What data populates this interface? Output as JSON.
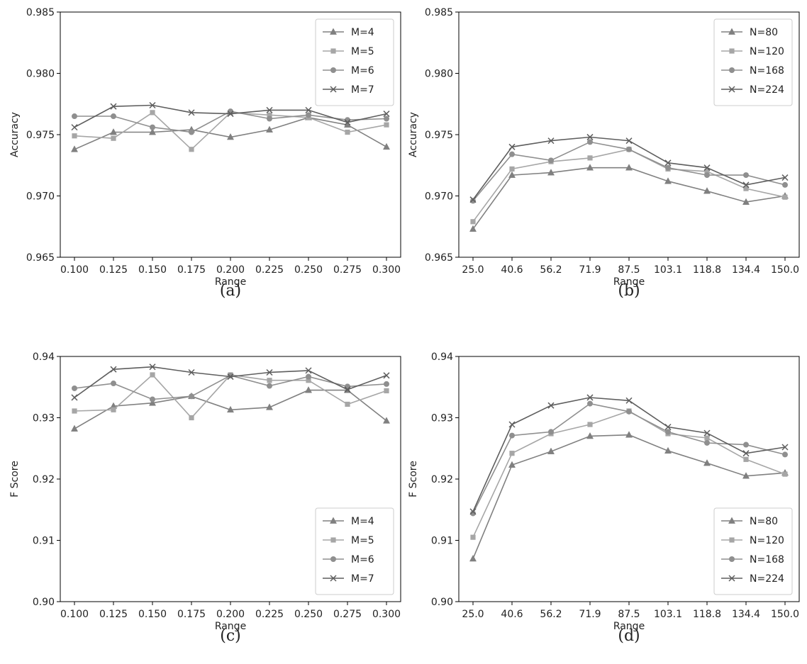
{
  "chart_data": [
    {
      "type": "line",
      "caption": "(a)",
      "xlabel": "Range",
      "ylabel": "Accuracy",
      "categories": [
        "0.100",
        "0.125",
        "0.150",
        "0.175",
        "0.200",
        "0.225",
        "0.250",
        "0.275",
        "0.300"
      ],
      "ylim": [
        0.965,
        0.985
      ],
      "yticks": [
        "0.965",
        "0.970",
        "0.975",
        "0.980",
        "0.985"
      ],
      "legend": "top-right",
      "series": [
        {
          "name": "M=4",
          "marker": "triangle",
          "color": "#808080",
          "values": [
            0.9738,
            0.9752,
            0.9752,
            0.9754,
            0.9748,
            0.9754,
            0.9764,
            0.9758,
            0.974
          ]
        },
        {
          "name": "M=5",
          "marker": "square",
          "color": "#a6a6a6",
          "values": [
            0.9749,
            0.9747,
            0.9768,
            0.9738,
            0.9768,
            0.9766,
            0.9764,
            0.9752,
            0.9758
          ]
        },
        {
          "name": "M=6",
          "marker": "circle",
          "color": "#8f8f8f",
          "values": [
            0.9765,
            0.9765,
            0.9756,
            0.9752,
            0.9769,
            0.9763,
            0.9766,
            0.9762,
            0.9763
          ]
        },
        {
          "name": "M=7",
          "marker": "x",
          "color": "#5e5e5e",
          "values": [
            0.9756,
            0.9773,
            0.9774,
            0.9768,
            0.9767,
            0.977,
            0.977,
            0.976,
            0.9767
          ]
        }
      ]
    },
    {
      "type": "line",
      "caption": "(b)",
      "xlabel": "Range",
      "ylabel": "Accuracy",
      "categories": [
        "25.0",
        "40.6",
        "56.2",
        "71.9",
        "87.5",
        "103.1",
        "118.8",
        "134.4",
        "150.0"
      ],
      "ylim": [
        0.965,
        0.985
      ],
      "yticks": [
        "0.965",
        "0.970",
        "0.975",
        "0.980",
        "0.985"
      ],
      "legend": "top-right",
      "series": [
        {
          "name": "N=80",
          "marker": "triangle",
          "color": "#808080",
          "values": [
            0.9673,
            0.9717,
            0.9719,
            0.9723,
            0.9723,
            0.9712,
            0.9704,
            0.9695,
            0.97
          ]
        },
        {
          "name": "N=120",
          "marker": "square",
          "color": "#a6a6a6",
          "values": [
            0.9679,
            0.9722,
            0.9728,
            0.9731,
            0.9738,
            0.9722,
            0.972,
            0.9706,
            0.9699
          ]
        },
        {
          "name": "N=168",
          "marker": "circle",
          "color": "#8f8f8f",
          "values": [
            0.9696,
            0.9734,
            0.9729,
            0.9744,
            0.9738,
            0.9723,
            0.9717,
            0.9717,
            0.9709
          ]
        },
        {
          "name": "N=224",
          "marker": "x",
          "color": "#5e5e5e",
          "values": [
            0.9697,
            0.974,
            0.9745,
            0.9748,
            0.9745,
            0.9727,
            0.9723,
            0.9709,
            0.9715
          ]
        }
      ]
    },
    {
      "type": "line",
      "caption": "(c)",
      "xlabel": "Range",
      "ylabel": "F Score",
      "categories": [
        "0.100",
        "0.125",
        "0.150",
        "0.175",
        "0.200",
        "0.225",
        "0.250",
        "0.275",
        "0.300"
      ],
      "ylim": [
        0.9,
        0.94
      ],
      "yticks": [
        "0.90",
        "0.91",
        "0.92",
        "0.93",
        "0.94"
      ],
      "legend": "bottom-right",
      "series": [
        {
          "name": "M=4",
          "marker": "triangle",
          "color": "#808080",
          "values": [
            0.9282,
            0.9319,
            0.9324,
            0.9335,
            0.9313,
            0.9317,
            0.9345,
            0.9345,
            0.9295
          ]
        },
        {
          "name": "M=5",
          "marker": "square",
          "color": "#a6a6a6",
          "values": [
            0.9311,
            0.9313,
            0.937,
            0.93,
            0.937,
            0.9361,
            0.9361,
            0.9322,
            0.9344
          ]
        },
        {
          "name": "M=6",
          "marker": "circle",
          "color": "#8f8f8f",
          "values": [
            0.9348,
            0.9356,
            0.933,
            0.9335,
            0.9369,
            0.9352,
            0.9367,
            0.9351,
            0.9355
          ]
        },
        {
          "name": "M=7",
          "marker": "x",
          "color": "#5e5e5e",
          "values": [
            0.9333,
            0.9379,
            0.9383,
            0.9374,
            0.9367,
            0.9374,
            0.9377,
            0.9346,
            0.9369
          ]
        }
      ]
    },
    {
      "type": "line",
      "caption": "(d)",
      "xlabel": "Range",
      "ylabel": "F Score",
      "categories": [
        "25.0",
        "40.6",
        "56.2",
        "71.9",
        "87.5",
        "103.1",
        "118.8",
        "134.4",
        "150.0"
      ],
      "ylim": [
        0.9,
        0.94
      ],
      "yticks": [
        "0.90",
        "0.91",
        "0.92",
        "0.93",
        "0.94"
      ],
      "legend": "bottom-right",
      "series": [
        {
          "name": "N=80",
          "marker": "triangle",
          "color": "#808080",
          "values": [
            0.907,
            0.9223,
            0.9245,
            0.927,
            0.9272,
            0.9246,
            0.9226,
            0.9205,
            0.921
          ]
        },
        {
          "name": "N=120",
          "marker": "square",
          "color": "#a6a6a6",
          "values": [
            0.9105,
            0.9242,
            0.9274,
            0.9289,
            0.9311,
            0.9274,
            0.9267,
            0.9232,
            0.9208
          ]
        },
        {
          "name": "N=168",
          "marker": "circle",
          "color": "#8f8f8f",
          "values": [
            0.9144,
            0.9271,
            0.9277,
            0.9323,
            0.931,
            0.9277,
            0.9259,
            0.9256,
            0.924
          ]
        },
        {
          "name": "N=224",
          "marker": "x",
          "color": "#5e5e5e",
          "values": [
            0.9147,
            0.9289,
            0.932,
            0.9333,
            0.9328,
            0.9285,
            0.9275,
            0.9242,
            0.9252
          ]
        }
      ]
    }
  ]
}
